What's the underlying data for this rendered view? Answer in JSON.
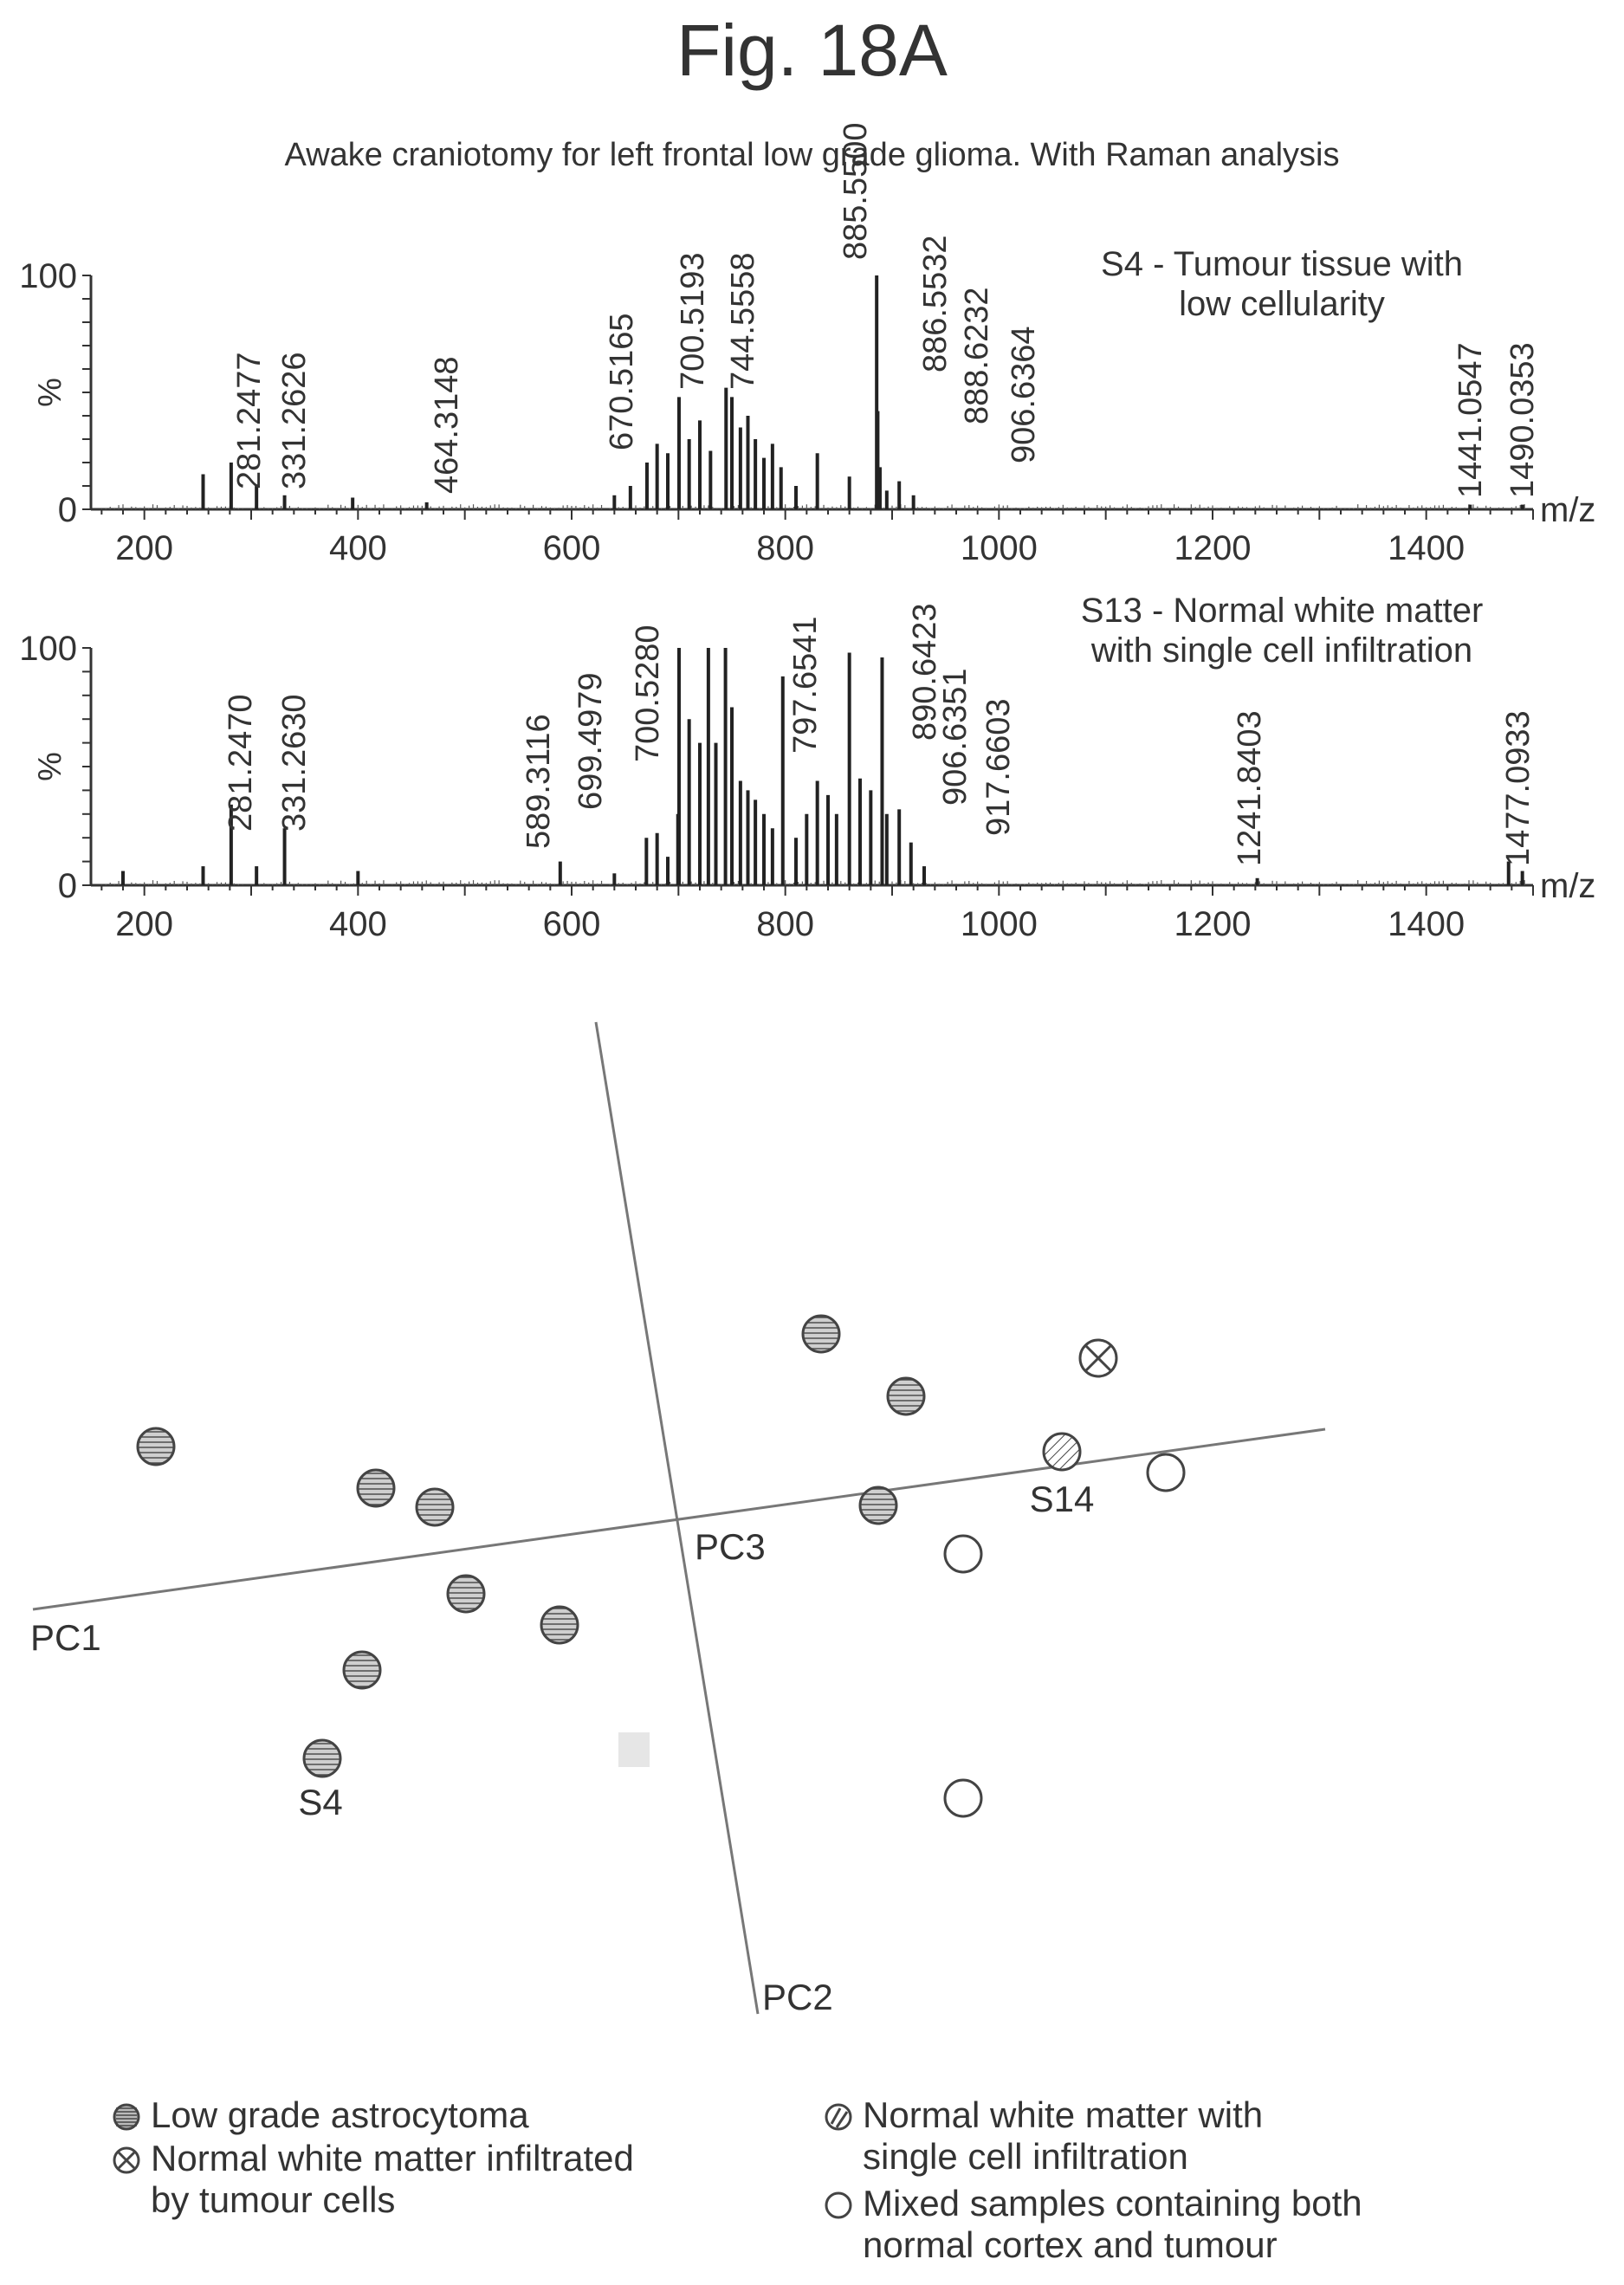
{
  "figure_label": "Fig. 18A",
  "subtitle": "Awake craniotomy for left frontal low grade glioma. With Raman analysis",
  "chart_data": [
    {
      "type": "bar",
      "name": "spectrum-s4",
      "sample_label": [
        "S4 - Tumour tissue with",
        "low cellularity"
      ],
      "xlabel": "m/z",
      "ylabel": "%",
      "xlim": [
        150,
        1500
      ],
      "ylim": [
        0,
        100
      ],
      "xticks": [
        200,
        400,
        600,
        800,
        1000,
        1200,
        1400
      ],
      "yticks": [
        0,
        100
      ],
      "peaks": [
        {
          "x": 255,
          "y": 15
        },
        {
          "x": 281.2477,
          "y": 20
        },
        {
          "x": 305,
          "y": 10
        },
        {
          "x": 331.2626,
          "y": 6
        },
        {
          "x": 395,
          "y": 5
        },
        {
          "x": 464.3148,
          "y": 3
        },
        {
          "x": 640,
          "y": 6
        },
        {
          "x": 655,
          "y": 10
        },
        {
          "x": 670.5165,
          "y": 20
        },
        {
          "x": 680,
          "y": 28
        },
        {
          "x": 690,
          "y": 24
        },
        {
          "x": 700.5193,
          "y": 48
        },
        {
          "x": 710,
          "y": 30
        },
        {
          "x": 720,
          "y": 38
        },
        {
          "x": 730,
          "y": 25
        },
        {
          "x": 744.5558,
          "y": 52
        },
        {
          "x": 750,
          "y": 48
        },
        {
          "x": 758,
          "y": 35
        },
        {
          "x": 765,
          "y": 40
        },
        {
          "x": 772,
          "y": 30
        },
        {
          "x": 780,
          "y": 22
        },
        {
          "x": 788,
          "y": 28
        },
        {
          "x": 796,
          "y": 18
        },
        {
          "x": 810,
          "y": 10
        },
        {
          "x": 830,
          "y": 24
        },
        {
          "x": 860,
          "y": 14
        },
        {
          "x": 885.55,
          "y": 100
        },
        {
          "x": 886.5532,
          "y": 42
        },
        {
          "x": 888.6232,
          "y": 18
        },
        {
          "x": 895,
          "y": 8
        },
        {
          "x": 906.6364,
          "y": 12
        },
        {
          "x": 920,
          "y": 6
        },
        {
          "x": 1441.0547,
          "y": 2
        },
        {
          "x": 1490.0353,
          "y": 2
        }
      ],
      "labels": [
        "281.2477",
        "331.2626",
        "464.3148",
        "670.5165",
        "700.5193",
        "744.5558",
        "885.5500",
        "886.5532",
        "888.6232",
        "906.6364",
        "1441.0547",
        "1490.0353"
      ]
    },
    {
      "type": "bar",
      "name": "spectrum-s13",
      "sample_label": [
        "S13 - Normal white matter",
        "with single cell infiltration"
      ],
      "xlabel": "m/z",
      "ylabel": "%",
      "xlim": [
        150,
        1500
      ],
      "ylim": [
        0,
        100
      ],
      "xticks": [
        200,
        400,
        600,
        800,
        1000,
        1200,
        1400
      ],
      "yticks": [
        0,
        100
      ],
      "peaks": [
        {
          "x": 180,
          "y": 6
        },
        {
          "x": 255,
          "y": 8
        },
        {
          "x": 281.247,
          "y": 34
        },
        {
          "x": 305,
          "y": 8
        },
        {
          "x": 331.263,
          "y": 24
        },
        {
          "x": 400,
          "y": 6
        },
        {
          "x": 589.3116,
          "y": 10
        },
        {
          "x": 640,
          "y": 5
        },
        {
          "x": 670,
          "y": 20
        },
        {
          "x": 680,
          "y": 22
        },
        {
          "x": 690,
          "y": 12
        },
        {
          "x": 699.4979,
          "y": 30
        },
        {
          "x": 700.528,
          "y": 100
        },
        {
          "x": 710,
          "y": 70
        },
        {
          "x": 720,
          "y": 60
        },
        {
          "x": 728,
          "y": 100
        },
        {
          "x": 735,
          "y": 60
        },
        {
          "x": 744,
          "y": 100
        },
        {
          "x": 750,
          "y": 75
        },
        {
          "x": 758,
          "y": 44
        },
        {
          "x": 765,
          "y": 40
        },
        {
          "x": 772,
          "y": 36
        },
        {
          "x": 780,
          "y": 30
        },
        {
          "x": 788,
          "y": 24
        },
        {
          "x": 797.6541,
          "y": 88
        },
        {
          "x": 810,
          "y": 20
        },
        {
          "x": 820,
          "y": 30
        },
        {
          "x": 830,
          "y": 44
        },
        {
          "x": 840,
          "y": 38
        },
        {
          "x": 848,
          "y": 30
        },
        {
          "x": 860,
          "y": 98
        },
        {
          "x": 870,
          "y": 45
        },
        {
          "x": 880,
          "y": 40
        },
        {
          "x": 890.6423,
          "y": 96
        },
        {
          "x": 895,
          "y": 30
        },
        {
          "x": 906.6351,
          "y": 32
        },
        {
          "x": 917.6603,
          "y": 18
        },
        {
          "x": 930,
          "y": 8
        },
        {
          "x": 1241.8403,
          "y": 3
        },
        {
          "x": 1477.0933,
          "y": 10
        },
        {
          "x": 1490,
          "y": 6
        }
      ],
      "labels": [
        "281.2470",
        "331.2630",
        "589.3116",
        "699.4979",
        "700.5280",
        "797.6541",
        "890.6423",
        "906.6351",
        "917.6603",
        "1241.8403",
        "1477.0933"
      ]
    },
    {
      "type": "scatter",
      "name": "pca-plot",
      "axes": [
        "PC1",
        "PC2",
        "PC3"
      ],
      "points": [
        {
          "group": "low-grade-astrocytoma"
        },
        {
          "group": "low-grade-astrocytoma"
        },
        {
          "group": "low-grade-astrocytoma"
        },
        {
          "group": "low-grade-astrocytoma"
        },
        {
          "group": "low-grade-astrocytoma"
        },
        {
          "group": "low-grade-astrocytoma"
        },
        {
          "group": "low-grade-astrocytoma",
          "label": "S4"
        },
        {
          "group": "low-grade-astrocytoma"
        },
        {
          "group": "low-grade-astrocytoma"
        },
        {
          "group": "low-grade-astrocytoma"
        },
        {
          "group": "normal-white-matter-infiltrated"
        },
        {
          "group": "normal-white-matter-single-cell",
          "label": "S14"
        },
        {
          "group": "mixed-samples"
        },
        {
          "group": "mixed-samples"
        },
        {
          "group": "mixed-samples"
        }
      ],
      "legend": [
        {
          "group": "low-grade-astrocytoma",
          "text": [
            "Low grade astrocytoma"
          ]
        },
        {
          "group": "normal-white-matter-infiltrated",
          "text": [
            "Normal white matter infiltrated",
            "by tumour cells"
          ]
        },
        {
          "group": "normal-white-matter-single-cell",
          "text": [
            "Normal white matter with",
            "single cell infiltration"
          ]
        },
        {
          "group": "mixed-samples",
          "text": [
            "Mixed samples containing both",
            "normal cortex and tumour"
          ]
        }
      ]
    }
  ]
}
